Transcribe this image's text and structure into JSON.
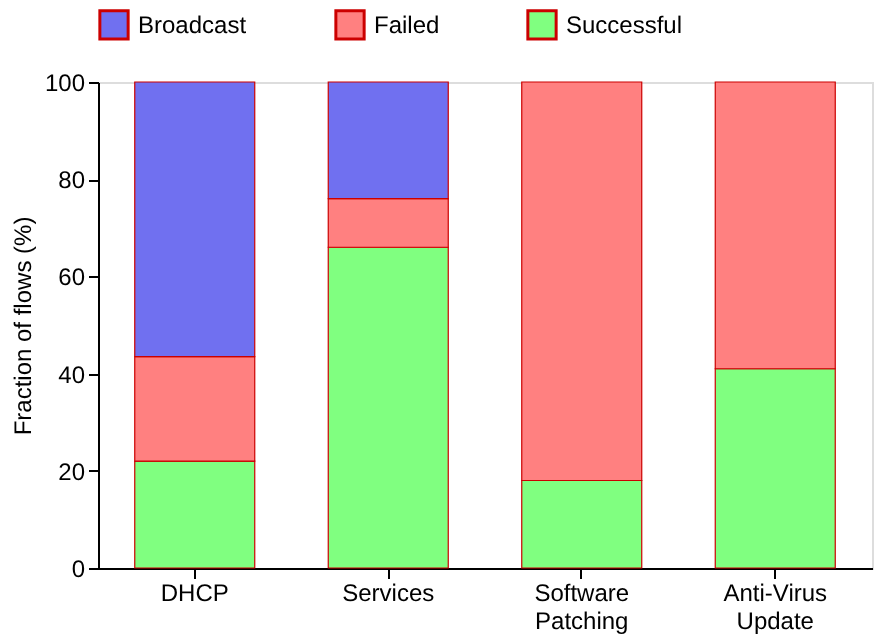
{
  "chart_data": {
    "type": "bar",
    "stacked": true,
    "ylabel": "Fraction of flows (%)",
    "categories": [
      "DHCP",
      "Services",
      "Software Patching",
      "Anti-Virus Update"
    ],
    "series": [
      {
        "name": "Successful",
        "color": "#80ff80",
        "values": [
          22,
          66,
          18,
          41
        ]
      },
      {
        "name": "Failed",
        "color": "#ff8080",
        "values": [
          21.5,
          10,
          82,
          59
        ]
      },
      {
        "name": "Broadcast",
        "color": "#7070f0",
        "values": [
          56.5,
          24,
          null,
          null
        ]
      }
    ],
    "ylim": [
      0,
      100
    ],
    "yticks": [
      0,
      20,
      40,
      60,
      80,
      100
    ],
    "grid": false,
    "legend": "top"
  }
}
